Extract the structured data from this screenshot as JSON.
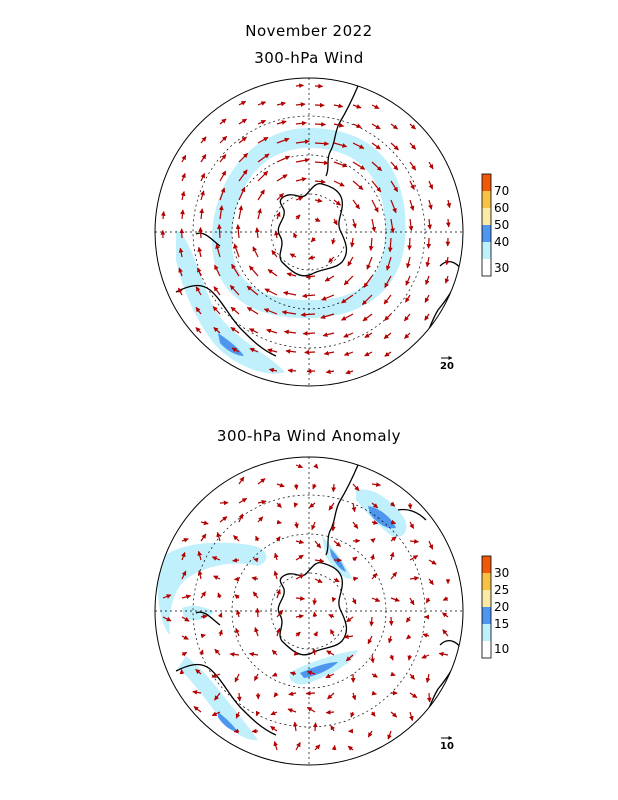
{
  "titles": {
    "main": "November 2022",
    "panel1": "300-hPa Wind",
    "panel2": "300-hPa Wind Anomaly"
  },
  "colors": {
    "arrow": "#b30000",
    "outline": "#000000",
    "grid": "#000000",
    "c_light_blue": "#bff0fb",
    "c_blue": "#4f97ee",
    "c_light_yellow": "#fbe9a5",
    "c_yellow": "#f7c243",
    "c_orange": "#fa8c1a",
    "c_dark_orange": "#ef5a0a"
  },
  "panels": [
    {
      "name": "wind",
      "reference_vector": "20",
      "colorbar": {
        "levels": [
          "30",
          "40",
          "50",
          "60",
          "70"
        ],
        "colors": [
          "#ffffff",
          "#bff0fb",
          "#4f97ee",
          "#fbe9a5",
          "#f7c243",
          "#ef5a0a"
        ]
      }
    },
    {
      "name": "anomaly",
      "reference_vector": "10",
      "colorbar": {
        "levels": [
          "10",
          "15",
          "20",
          "25",
          "30"
        ],
        "colors": [
          "#ffffff",
          "#bff0fb",
          "#4f97ee",
          "#fbe9a5",
          "#f7c243",
          "#ef5a0a"
        ]
      }
    }
  ]
}
